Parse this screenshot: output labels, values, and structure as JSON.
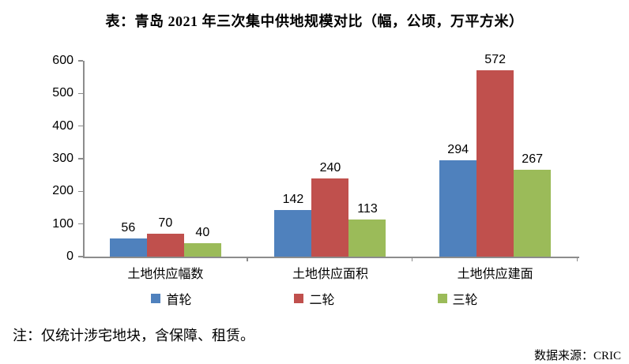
{
  "chart_data": {
    "type": "bar",
    "title": "表：青岛 2021 年三次集中供地规模对比（幅，公顷，万平方米）",
    "categories": [
      "土地供应幅数",
      "土地供应面积",
      "土地供应建面"
    ],
    "series": [
      {
        "name": "首轮",
        "color": "#4F81BD",
        "values": [
          56,
          142,
          294
        ]
      },
      {
        "name": "二轮",
        "color": "#C0504D",
        "values": [
          70,
          240,
          572
        ]
      },
      {
        "name": "三轮",
        "color": "#9BBB59",
        "values": [
          40,
          113,
          267
        ]
      }
    ],
    "ylim": [
      0,
      600
    ],
    "yticks": [
      0,
      100,
      200,
      300,
      400,
      500,
      600
    ],
    "grid": false,
    "legend_position": "bottom",
    "data_labels": true,
    "axis_color": "#8c8c8c"
  },
  "note": "注：仅统计涉宅地块，含保障、租赁。",
  "source": "数据来源：CRIC"
}
